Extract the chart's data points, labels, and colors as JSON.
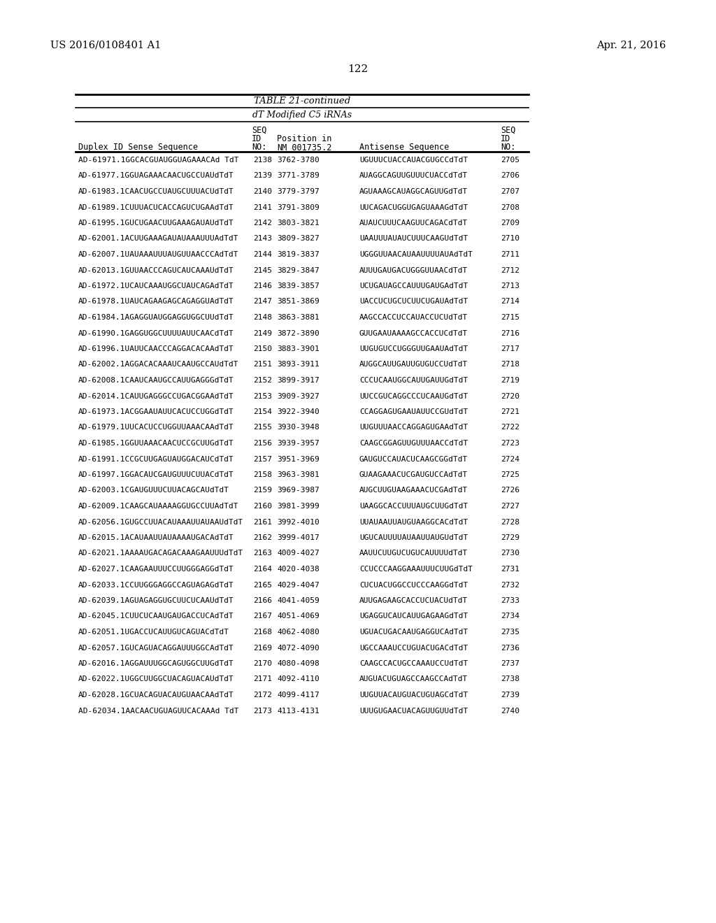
{
  "header_left": "US 2016/0108401 A1",
  "header_right": "Apr. 21, 2016",
  "page_number": "122",
  "table_title": "TABLE 21-continued",
  "table_subtitle": "dT Modified C5 iRNAs",
  "rows": [
    [
      "AD-61971.1GGCACGUAUGGUAGAAACAd TdT",
      "2138",
      "3762-3780",
      "UGUUUCUACCAUACGUGCCdTdT",
      "2705"
    ],
    [
      "AD-61977.1GGUAGAAACAACUGCCUAUdTdT",
      "2139",
      "3771-3789",
      "AUAGGCAGUUGUUUCUACCdTdT",
      "2706"
    ],
    [
      "AD-61983.1CAACUGCCUAUGCUUUACUdTdT",
      "2140",
      "3779-3797",
      "AGUAAAGCAUAGGCAGUUGdTdT",
      "2707"
    ],
    [
      "AD-61989.1CUUUACUCACCAGUCUGAAdTdT",
      "2141",
      "3791-3809",
      "UUCAGACUGGUGAGUAAAGdTdT",
      "2708"
    ],
    [
      "AD-61995.1GUCUGAACUUGAAAGAUAUdTdT",
      "2142",
      "3803-3821",
      "AUAUCUUUCAAGUUCAGACdTdT",
      "2709"
    ],
    [
      "AD-62001.1ACUUGAAAGAUAUAAAUUUAdTdT",
      "2143",
      "3809-3827",
      "UAAUUUAUAUCUUUCAAGUdTdT",
      "2710"
    ],
    [
      "AD-62007.1UAUAAAUUUAUGUUAACCCAdTdT",
      "2144",
      "3819-3837",
      "UGGGUUAACAUAAUUUUAUAdTdT",
      "2711"
    ],
    [
      "AD-62013.1GUUAACCCAGUCAUCAAAUdTdT",
      "2145",
      "3829-3847",
      "AUUUGAUGACUGGGUUAACdTdT",
      "2712"
    ],
    [
      "AD-61972.1UCAUCAAAUGGCUAUCAGAdTdT",
      "2146",
      "3839-3857",
      "UCUGAUAGCCAUUUGAUGAdTdT",
      "2713"
    ],
    [
      "AD-61978.1UAUCAGAAGAGCAGAGGUAdTdT",
      "2147",
      "3851-3869",
      "UACCUCUGCUCUUCUGAUAdTdT",
      "2714"
    ],
    [
      "AD-61984.1AGAGGUAUGGAGGUGGCUUdTdT",
      "2148",
      "3863-3881",
      "AAGCCACCUCCAUACCUCUdTdT",
      "2715"
    ],
    [
      "AD-61990.1GAGGUGGCUUUUAUUCAACdTdT",
      "2149",
      "3872-3890",
      "GUUGAAUAAAAGCCACCUCdTdT",
      "2716"
    ],
    [
      "AD-61996.1UAUUCAACCCAGGACACAAdTdT",
      "2150",
      "3883-3901",
      "UUGUGUCCUGGGUUGAAUAdTdT",
      "2717"
    ],
    [
      "AD-62002.1AGGACACAAAUCAAUGCCAUdTdT",
      "2151",
      "3893-3911",
      "AUGGCAUUGAUUGUGUCCUdTdT",
      "2718"
    ],
    [
      "AD-62008.1CAAUCAAUGCCAUUGAGGGdTdT",
      "2152",
      "3899-3917",
      "CCCUCAAUGGCAUUGAUUGdTdT",
      "2719"
    ],
    [
      "AD-62014.1CAUUGAGGGCCUGACGGAAdTdT",
      "2153",
      "3909-3927",
      "UUCCGUCAGGCCCUCAAUGdTdT",
      "2720"
    ],
    [
      "AD-61973.1ACGGAAUAUUCACUCCUGGdTdT",
      "2154",
      "3922-3940",
      "CCAGGAGUGAAUAUUCCGUdTdT",
      "2721"
    ],
    [
      "AD-61979.1UUCACUCCUGGUUAAACAAdTdT",
      "2155",
      "3930-3948",
      "UUGUUUAACCAGGAGUGAAdTdT",
      "2722"
    ],
    [
      "AD-61985.1GGUUAAACAACUCCGCUUGdTdT",
      "2156",
      "3939-3957",
      "CAAGCGGAGUUGUUUAACCdTdT",
      "2723"
    ],
    [
      "AD-61991.1CCGCUUGAGUAUGGACAUCdTdT",
      "2157",
      "3951-3969",
      "GAUGUCCAUACUCAAGCGGdTdT",
      "2724"
    ],
    [
      "AD-61997.1GGACAUCGAUGUUUCUUACdTdT",
      "2158",
      "3963-3981",
      "GUAAGAAACUCGAUGUCCAdTdT",
      "2725"
    ],
    [
      "AD-62003.1CGAUGUUUCUUACAGCAUdTdT",
      "2159",
      "3969-3987",
      "AUGCUUGUAAGAAACUCGAdTdT",
      "2726"
    ],
    [
      "AD-62009.1CAAGCAUAAAAGGUGCCUUAdTdT",
      "2160",
      "3981-3999",
      "UAAGGCACCUUUAUGCUUGdTdT",
      "2727"
    ],
    [
      "AD-62056.1GUGCCUUACAUAAAUUAUAAUdTdT",
      "2161",
      "3992-4010",
      "UUAUAAUUAUGUAAGGCACdTdT",
      "2728"
    ],
    [
      "AD-62015.1ACAUAAUUAUAAAAUGACAdTdT",
      "2162",
      "3999-4017",
      "UGUCAUUUUAUAAUUAUGUdTdT",
      "2729"
    ],
    [
      "AD-62021.1AAAAUGACAGACAAAGAAUUUdTdT",
      "2163",
      "4009-4027",
      "AAUUCUUGUCUGUCAUUUUdTdT",
      "2730"
    ],
    [
      "AD-62027.1CAAGAAUUUCCUUGGGAGGdTdT",
      "2164",
      "4020-4038",
      "CCUCCCAAGGAAAUUUCUUGdTdT",
      "2731"
    ],
    [
      "AD-62033.1CCUUGGGAGGCCAGUAGAGdTdT",
      "2165",
      "4029-4047",
      "CUCUACUGGCCUCCCAAGGdTdT",
      "2732"
    ],
    [
      "AD-62039.1AGUAGAGGUGCUUCUCAAUdTdT",
      "2166",
      "4041-4059",
      "AUUGAGAAGCACCUCUACUdTdT",
      "2733"
    ],
    [
      "AD-62045.1CUUCUCAAUGAUGACCUCAdTdT",
      "2167",
      "4051-4069",
      "UGAGGUCAUCAUUGAGAAGdTdT",
      "2734"
    ],
    [
      "AD-62051.1UGACCUCAUUGUCAGUACdTdT",
      "2168",
      "4062-4080",
      "UGUACUGACAAUGAGGUCAdTdT",
      "2735"
    ],
    [
      "AD-62057.1GUCAGUACAGGAUUUGGCAdTdT",
      "2169",
      "4072-4090",
      "UGCCAAAUCCUGUACUGACdTdT",
      "2736"
    ],
    [
      "AD-62016.1AGGAUUUGGCAGUGGCUUGdTdT",
      "2170",
      "4080-4098",
      "CAAGCCACUGCCAAAUCCUdTdT",
      "2737"
    ],
    [
      "AD-62022.1UGGCUUGGCUACAGUACAUdTdT",
      "2171",
      "4092-4110",
      "AUGUACUGUAGCCAAGCCAdTdT",
      "2738"
    ],
    [
      "AD-62028.1GCUACAGUACAUGUAACAAdTdT",
      "2172",
      "4099-4117",
      "UUGUUACAUGUACUGUAGCdTdT",
      "2739"
    ],
    [
      "AD-62034.1AACAACUGUAGUUCACAAAd TdT",
      "2173",
      "4113-4131",
      "UUUGUGAACUACAGUUGUUdTdT",
      "2740"
    ]
  ]
}
